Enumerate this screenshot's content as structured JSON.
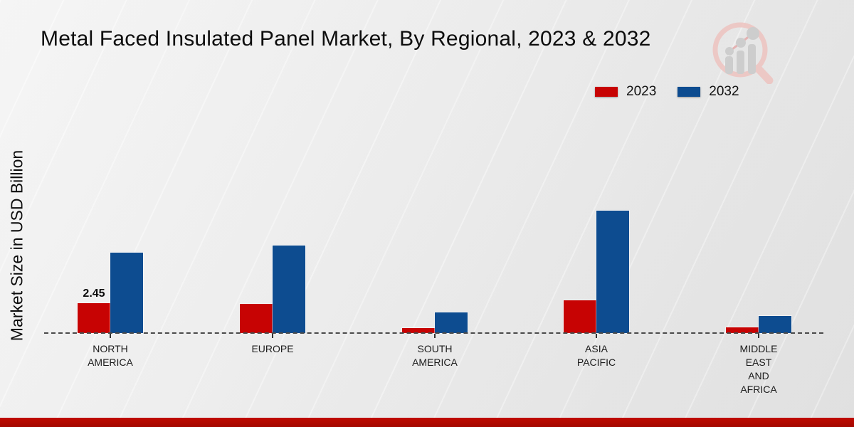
{
  "title": "Metal Faced Insulated Panel Market, By Regional, 2023 & 2032",
  "ylabel": "Market Size in USD Billion",
  "legend": {
    "items": [
      {
        "label": "2023",
        "color": "#c70303"
      },
      {
        "label": "2032",
        "color": "#0d4c90"
      }
    ]
  },
  "brand": {
    "logo": "magnifier-bar-chart-logo",
    "ring_color": "#eec3c0",
    "bars_color": "#c9c9c9"
  },
  "footer": {
    "accent_color_top": "#c00a00",
    "accent_color_bottom": "#a30800"
  },
  "chart_data": {
    "type": "bar",
    "title": "Metal Faced Insulated Panel Market, By Regional, 2023 & 2032",
    "xlabel": "",
    "ylabel": "Market Size in USD Billion",
    "categories": [
      "NORTH AMERICA",
      "EUROPE",
      "SOUTH AMERICA",
      "ASIA PACIFIC",
      "MIDDLE EAST AND AFRICA"
    ],
    "category_label_lines": [
      [
        "NORTH",
        "AMERICA"
      ],
      [
        "EUROPE"
      ],
      [
        "SOUTH",
        "AMERICA"
      ],
      [
        "ASIA",
        "PACIFIC"
      ],
      [
        "MIDDLE",
        "EAST",
        "AND",
        "AFRICA"
      ]
    ],
    "series": [
      {
        "name": "2023",
        "color": "#c70303",
        "values": [
          2.45,
          2.4,
          0.4,
          2.7,
          0.45
        ]
      },
      {
        "name": "2032",
        "color": "#0d4c90",
        "values": [
          6.6,
          7.2,
          1.7,
          10.0,
          1.4
        ]
      }
    ],
    "data_labels": [
      {
        "series": "2023",
        "category": "NORTH AMERICA",
        "text": "2.45"
      }
    ],
    "ylim": [
      0,
      11
    ],
    "grid": false,
    "y_axis_ticks": "none",
    "baseline_style": "dashed",
    "legend_position": "top-right"
  }
}
